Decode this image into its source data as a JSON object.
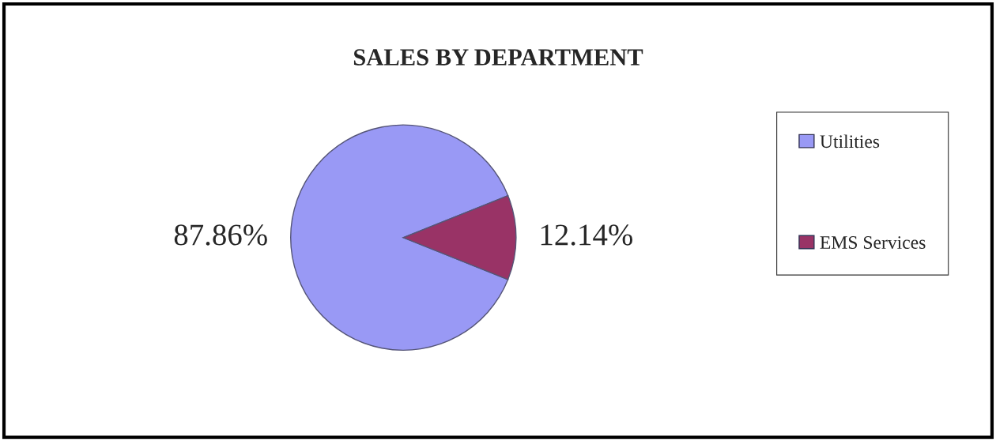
{
  "chart_data": {
    "type": "pie",
    "title": "SALES BY DEPARTMENT",
    "categories": [
      "Utilities",
      "EMS Services"
    ],
    "values": [
      87.86,
      12.14
    ],
    "colors": [
      "#9999f5",
      "#993366"
    ],
    "value_labels": [
      "87.86%",
      "12.14%"
    ],
    "legend": "right"
  }
}
